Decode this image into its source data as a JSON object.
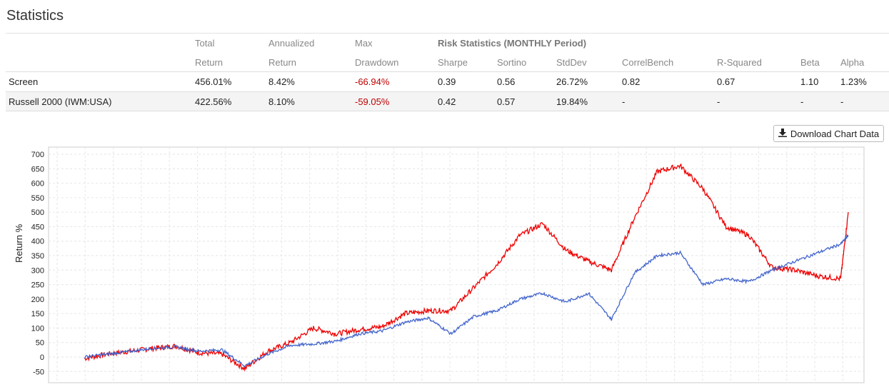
{
  "page": {
    "title": "Statistics"
  },
  "stats": {
    "headers_row1": [
      "",
      "Total",
      "Annualized",
      "Max",
      "Risk Statistics (MONTHLY Period)",
      "",
      "",
      "",
      "",
      "",
      ""
    ],
    "headers_row2": [
      "",
      "Return",
      "Return",
      "Drawdown",
      "Sharpe",
      "Sortino",
      "StdDev",
      "CorrelBench",
      "R-Squared",
      "Beta",
      "Alpha"
    ],
    "rows": [
      {
        "name": "Screen",
        "total_return": "456.01%",
        "annualized_return": "8.42%",
        "max_drawdown": "-66.94%",
        "sharpe": "0.39",
        "sortino": "0.56",
        "stddev": "26.72%",
        "correlbench": "0.82",
        "rsquared": "0.67",
        "beta": "1.10",
        "alpha": "1.23%"
      },
      {
        "name": "Russell 2000 (IWM:USA)",
        "total_return": "422.56%",
        "annualized_return": "8.10%",
        "max_drawdown": "-59.05%",
        "sharpe": "0.42",
        "sortino": "0.57",
        "stddev": "19.84%",
        "correlbench": "-",
        "rsquared": "-",
        "beta": "-",
        "alpha": "-"
      }
    ]
  },
  "toolbar": {
    "download_label": "Download Chart Data",
    "download_icon": "download-icon"
  },
  "colors": {
    "screen_series": "#ee0000",
    "benchmark_series": "#4466cc",
    "negative": "#c00000"
  },
  "chart_data": {
    "type": "line",
    "ylabel": "Return %",
    "ylim": [
      -60,
      720
    ],
    "yticks": [
      -50,
      0,
      50,
      100,
      150,
      200,
      250,
      300,
      350,
      400,
      450,
      500,
      550,
      600,
      650,
      700
    ],
    "grid": true,
    "x": [
      0,
      3,
      6,
      9,
      12,
      15,
      18,
      21,
      24,
      27,
      30,
      33,
      36,
      39,
      42,
      45,
      48,
      51,
      54,
      57,
      60,
      63,
      66,
      69,
      72,
      75,
      78,
      81,
      84,
      87,
      90,
      93,
      96,
      99,
      100
    ],
    "series": [
      {
        "color": "#ee0000",
        "values": [
          -5,
          10,
          20,
          30,
          38,
          15,
          10,
          -40,
          20,
          50,
          100,
          80,
          95,
          105,
          150,
          160,
          160,
          240,
          320,
          420,
          460,
          370,
          330,
          300,
          480,
          640,
          660,
          580,
          450,
          420,
          310,
          300,
          280,
          270,
          500
        ]
      },
      {
        "color": "#4466cc",
        "values": [
          0,
          10,
          20,
          30,
          35,
          20,
          25,
          -30,
          10,
          40,
          45,
          55,
          80,
          90,
          120,
          135,
          80,
          140,
          160,
          200,
          220,
          190,
          220,
          130,
          290,
          350,
          360,
          250,
          270,
          260,
          300,
          330,
          360,
          390,
          420
        ]
      }
    ]
  }
}
